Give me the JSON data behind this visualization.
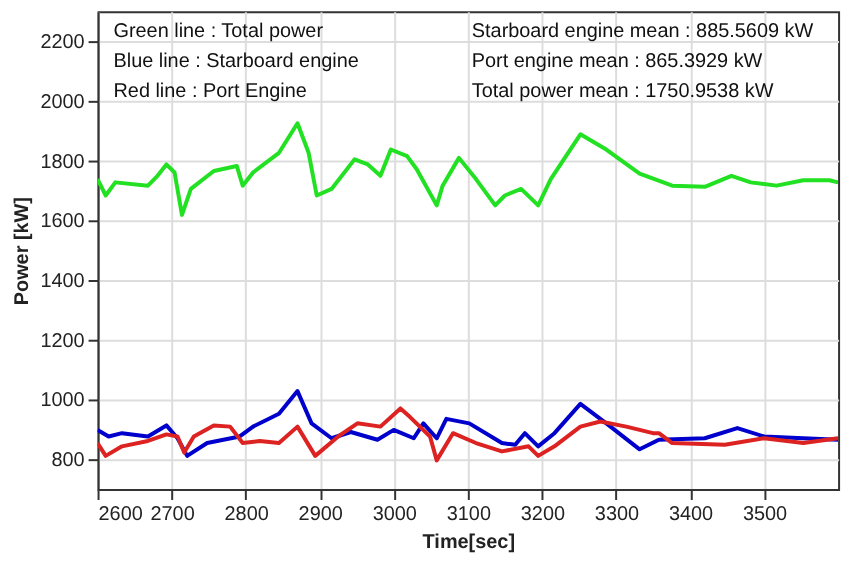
{
  "chart_data": {
    "type": "line",
    "xlabel": "Time[sec]",
    "ylabel": "Power [kW]",
    "xlim": [
      2600,
      3600
    ],
    "xticks": [
      2600,
      2700,
      2800,
      2900,
      3000,
      3100,
      3200,
      3300,
      3400,
      3500
    ],
    "ylim": [
      700,
      2300
    ],
    "yticks": [
      800,
      1000,
      1200,
      1400,
      1600,
      1800,
      2000,
      2200
    ],
    "grid": true,
    "legend": false,
    "marker": "none",
    "line_style": "solid",
    "annotations": [
      "Green line : Total power",
      "Blue line    : Starboard engine",
      "Red line     : Port Engine",
      "Starboard engine mean :   885.5609 kW",
      "Port engine mean            :   865.3929 kW",
      "Total power mean             :  1750.9538 kW"
    ],
    "series": [
      {
        "color": "#22e022",
        "x": [
          2600,
          2611,
          2624,
          2668,
          2681,
          2693,
          2704,
          2714,
          2726,
          2757,
          2788,
          2796,
          2810,
          2845,
          2870,
          2885,
          2896,
          2916,
          2947,
          2965,
          2982,
          2996,
          3018,
          3031,
          3058,
          3066,
          3088,
          3111,
          3137,
          3150,
          3172,
          3195,
          3212,
          3252,
          3287,
          3332,
          3376,
          3420,
          3456,
          3482,
          3517,
          3553,
          3588,
          3600
        ],
        "values": [
          1738,
          1683,
          1727,
          1716,
          1749,
          1787,
          1760,
          1618,
          1705,
          1765,
          1782,
          1716,
          1760,
          1826,
          1925,
          1826,
          1683,
          1705,
          1804,
          1787,
          1749,
          1837,
          1815,
          1771,
          1650,
          1716,
          1809,
          1738,
          1650,
          1683,
          1705,
          1650,
          1738,
          1888,
          1837,
          1756,
          1716,
          1712,
          1749,
          1727,
          1716,
          1734,
          1734,
          1727
        ]
      },
      {
        "color": "#0000cc",
        "x": [
          2600,
          2615,
          2633,
          2668,
          2693,
          2708,
          2721,
          2748,
          2792,
          2810,
          2845,
          2870,
          2889,
          2916,
          2942,
          2978,
          3000,
          3027,
          3040,
          3058,
          3071,
          3102,
          3146,
          3164,
          3177,
          3195,
          3217,
          3252,
          3287,
          3332,
          3358,
          3420,
          3464,
          3500,
          3553,
          3600
        ],
        "values": [
          898,
          876,
          887,
          876,
          913,
          870,
          811,
          854,
          876,
          909,
          952,
          1028,
          920,
          870,
          891,
          865,
          898,
          870,
          920,
          870,
          935,
          920,
          854,
          848,
          887,
          843,
          887,
          985,
          920,
          833,
          865,
          870,
          904,
          876,
          870,
          865
        ]
      },
      {
        "color": "#dd2222",
        "x": [
          2600,
          2611,
          2633,
          2668,
          2693,
          2708,
          2717,
          2730,
          2757,
          2779,
          2796,
          2819,
          2845,
          2870,
          2894,
          2925,
          2951,
          2982,
          3009,
          3022,
          3049,
          3058,
          3080,
          3111,
          3146,
          3182,
          3195,
          3217,
          3252,
          3279,
          3314,
          3350,
          3358,
          3376,
          3447,
          3500,
          3553,
          3600
        ],
        "values": [
          854,
          811,
          843,
          861,
          883,
          876,
          822,
          876,
          913,
          909,
          854,
          861,
          854,
          909,
          811,
          876,
          920,
          909,
          970,
          941,
          876,
          796,
          887,
          854,
          826,
          843,
          811,
          843,
          909,
          926,
          909,
          887,
          887,
          854,
          848,
          870,
          854,
          870
        ]
      }
    ]
  }
}
